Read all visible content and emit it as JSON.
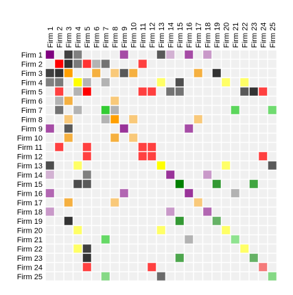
{
  "chart_data": {
    "type": "heatmap",
    "title": "",
    "xlabel": "",
    "ylabel": "",
    "x_axis_position": "top",
    "x_tick_rotation": -90,
    "grid": true,
    "legend": "none",
    "background_color": "#f0f0f0",
    "grid_color": "#ffffff",
    "labels": [
      "Firm 1",
      "Firm 2",
      "Firm 3",
      "Firm 4",
      "Firm 5",
      "Firm 6",
      "Firm 7",
      "Firm 8",
      "Firm 9",
      "Firm 10",
      "Firm 11",
      "Firm 12",
      "Firm 13",
      "Firm 14",
      "Firm 15",
      "Firm 16",
      "Firm 17",
      "Firm 18",
      "Firm 19",
      "Firm 20",
      "Firm 21",
      "Firm 22",
      "Firm 23",
      "Firm 24",
      "Firm 25"
    ],
    "cells": [
      {
        "row": "Firm 1",
        "col": "Firm 1",
        "color": "#800080"
      },
      {
        "row": "Firm 1",
        "col": "Firm 3",
        "color": "#404040"
      },
      {
        "row": "Firm 1",
        "col": "Firm 4",
        "color": "#808080"
      },
      {
        "row": "Firm 1",
        "col": "Firm 9",
        "color": "#a64ca6"
      },
      {
        "row": "Firm 1",
        "col": "Firm 13",
        "color": "#595959"
      },
      {
        "row": "Firm 1",
        "col": "Firm 14",
        "color": "#d3b2d3"
      },
      {
        "row": "Firm 1",
        "col": "Firm 16",
        "color": "#a64ca6"
      },
      {
        "row": "Firm 1",
        "col": "Firm 18",
        "color": "#c999c9"
      },
      {
        "row": "Firm 2",
        "col": "Firm 2",
        "color": "#ff0000"
      },
      {
        "row": "Firm 2",
        "col": "Firm 3",
        "color": "#333333"
      },
      {
        "row": "Firm 2",
        "col": "Firm 4",
        "color": "#7a7a7a"
      },
      {
        "row": "Firm 2",
        "col": "Firm 5",
        "color": "#ff3333"
      },
      {
        "row": "Firm 2",
        "col": "Firm 6",
        "color": "#b3b3b3"
      },
      {
        "row": "Firm 2",
        "col": "Firm 7",
        "color": "#737373"
      },
      {
        "row": "Firm 2",
        "col": "Firm 11",
        "color": "#ff4040"
      },
      {
        "row": "Firm 3",
        "col": "Firm 1",
        "color": "#404040"
      },
      {
        "row": "Firm 3",
        "col": "Firm 2",
        "color": "#333333"
      },
      {
        "row": "Firm 3",
        "col": "Firm 3",
        "color": "#ff9f00"
      },
      {
        "row": "Firm 3",
        "col": "Firm 6",
        "color": "#f5b040"
      },
      {
        "row": "Firm 3",
        "col": "Firm 8",
        "color": "#f9c97a"
      },
      {
        "row": "Firm 3",
        "col": "Firm 9",
        "color": "#595959"
      },
      {
        "row": "Firm 3",
        "col": "Firm 10",
        "color": "#f5b040"
      },
      {
        "row": "Firm 3",
        "col": "Firm 17",
        "color": "#f5b040"
      },
      {
        "row": "Firm 3",
        "col": "Firm 19",
        "color": "#333333"
      },
      {
        "row": "Firm 4",
        "col": "Firm 1",
        "color": "#808080"
      },
      {
        "row": "Firm 4",
        "col": "Firm 2",
        "color": "#7a7a7a"
      },
      {
        "row": "Firm 4",
        "col": "Firm 4",
        "color": "#ffff00"
      },
      {
        "row": "Firm 4",
        "col": "Firm 5",
        "color": "#b3b3b3"
      },
      {
        "row": "Firm 4",
        "col": "Firm 7",
        "color": "#b3b3b3"
      },
      {
        "row": "Firm 4",
        "col": "Firm 13",
        "color": "#ffff66"
      },
      {
        "row": "Firm 4",
        "col": "Firm 15",
        "color": "#4d4d4d"
      },
      {
        "row": "Firm 4",
        "col": "Firm 20",
        "color": "#ffff66"
      },
      {
        "row": "Firm 4",
        "col": "Firm 22",
        "color": "#ffff66"
      },
      {
        "row": "Firm 5",
        "col": "Firm 2",
        "color": "#ff4040"
      },
      {
        "row": "Firm 5",
        "col": "Firm 4",
        "color": "#b3b3b3"
      },
      {
        "row": "Firm 5",
        "col": "Firm 5",
        "color": "#ff0000"
      },
      {
        "row": "Firm 5",
        "col": "Firm 11",
        "color": "#ff4040"
      },
      {
        "row": "Firm 5",
        "col": "Firm 12",
        "color": "#ff4040"
      },
      {
        "row": "Firm 5",
        "col": "Firm 14",
        "color": "#737373"
      },
      {
        "row": "Firm 5",
        "col": "Firm 15",
        "color": "#737373"
      },
      {
        "row": "Firm 5",
        "col": "Firm 22",
        "color": "#595959"
      },
      {
        "row": "Firm 5",
        "col": "Firm 23",
        "color": "#333333"
      },
      {
        "row": "Firm 5",
        "col": "Firm 24",
        "color": "#ff4040"
      },
      {
        "row": "Firm 6",
        "col": "Firm 2",
        "color": "#b3b3b3"
      },
      {
        "row": "Firm 6",
        "col": "Firm 3",
        "color": "#f5b040"
      },
      {
        "row": "Firm 6",
        "col": "Firm 8",
        "color": "#f9c97a"
      },
      {
        "row": "Firm 7",
        "col": "Firm 2",
        "color": "#737373"
      },
      {
        "row": "Firm 7",
        "col": "Firm 4",
        "color": "#b3b3b3"
      },
      {
        "row": "Firm 7",
        "col": "Firm 7",
        "color": "#33cc33"
      },
      {
        "row": "Firm 7",
        "col": "Firm 8",
        "color": "#b3b3b3"
      },
      {
        "row": "Firm 7",
        "col": "Firm 21",
        "color": "#5cd65c"
      },
      {
        "row": "Firm 7",
        "col": "Firm 25",
        "color": "#70db70"
      },
      {
        "row": "Firm 8",
        "col": "Firm 3",
        "color": "#f9c97a"
      },
      {
        "row": "Firm 8",
        "col": "Firm 7",
        "color": "#b3b3b3"
      },
      {
        "row": "Firm 8",
        "col": "Firm 8",
        "color": "#ff9f00"
      },
      {
        "row": "Firm 8",
        "col": "Firm 10",
        "color": "#f9c97a"
      },
      {
        "row": "Firm 8",
        "col": "Firm 17",
        "color": "#f9c97a"
      },
      {
        "row": "Firm 9",
        "col": "Firm 1",
        "color": "#a64ca6"
      },
      {
        "row": "Firm 9",
        "col": "Firm 3",
        "color": "#595959"
      },
      {
        "row": "Firm 9",
        "col": "Firm 9",
        "color": "#993399"
      },
      {
        "row": "Firm 9",
        "col": "Firm 16",
        "color": "#a64ca6"
      },
      {
        "row": "Firm 10",
        "col": "Firm 3",
        "color": "#f5b040"
      },
      {
        "row": "Firm 10",
        "col": "Firm 8",
        "color": "#f5b040"
      },
      {
        "row": "Firm 10",
        "col": "Firm 10",
        "color": "#f9c97a"
      },
      {
        "row": "Firm 11",
        "col": "Firm 2",
        "color": "#ff4040"
      },
      {
        "row": "Firm 11",
        "col": "Firm 5",
        "color": "#ff4040"
      },
      {
        "row": "Firm 11",
        "col": "Firm 11",
        "color": "#ff4040"
      },
      {
        "row": "Firm 11",
        "col": "Firm 12",
        "color": "#ff4040"
      },
      {
        "row": "Firm 12",
        "col": "Firm 5",
        "color": "#ff4040"
      },
      {
        "row": "Firm 12",
        "col": "Firm 11",
        "color": "#ff4040"
      },
      {
        "row": "Firm 12",
        "col": "Firm 12",
        "color": "#ff4040"
      },
      {
        "row": "Firm 12",
        "col": "Firm 24",
        "color": "#ff4040"
      },
      {
        "row": "Firm 13",
        "col": "Firm 1",
        "color": "#4d4d4d"
      },
      {
        "row": "Firm 13",
        "col": "Firm 4",
        "color": "#ffff66"
      },
      {
        "row": "Firm 13",
        "col": "Firm 13",
        "color": "#ffff00"
      },
      {
        "row": "Firm 13",
        "col": "Firm 20",
        "color": "#ffff66"
      },
      {
        "row": "Firm 13",
        "col": "Firm 25",
        "color": "#595959"
      },
      {
        "row": "Firm 14",
        "col": "Firm 1",
        "color": "#d3b2d3"
      },
      {
        "row": "Firm 14",
        "col": "Firm 5",
        "color": "#808080"
      },
      {
        "row": "Firm 14",
        "col": "Firm 14",
        "color": "#993399"
      },
      {
        "row": "Firm 14",
        "col": "Firm 18",
        "color": "#c999c9"
      },
      {
        "row": "Firm 15",
        "col": "Firm 4",
        "color": "#4d4d4d"
      },
      {
        "row": "Firm 15",
        "col": "Firm 5",
        "color": "#595959"
      },
      {
        "row": "Firm 15",
        "col": "Firm 15",
        "color": "#008000"
      },
      {
        "row": "Firm 15",
        "col": "Firm 19",
        "color": "#339933"
      },
      {
        "row": "Firm 15",
        "col": "Firm 23",
        "color": "#40a640"
      },
      {
        "row": "Firm 16",
        "col": "Firm 1",
        "color": "#b266b2"
      },
      {
        "row": "Firm 16",
        "col": "Firm 9",
        "color": "#b266b2"
      },
      {
        "row": "Firm 16",
        "col": "Firm 16",
        "color": "#993399"
      },
      {
        "row": "Firm 16",
        "col": "Firm 21",
        "color": "#b3b3b3"
      },
      {
        "row": "Firm 17",
        "col": "Firm 3",
        "color": "#f5b040"
      },
      {
        "row": "Firm 17",
        "col": "Firm 8",
        "color": "#f9c97a"
      },
      {
        "row": "Firm 17",
        "col": "Firm 17",
        "color": "#f9c97a"
      },
      {
        "row": "Firm 18",
        "col": "Firm 1",
        "color": "#c999c9"
      },
      {
        "row": "Firm 18",
        "col": "Firm 14",
        "color": "#c999c9"
      },
      {
        "row": "Firm 18",
        "col": "Firm 18",
        "color": "#b266b2"
      },
      {
        "row": "Firm 19",
        "col": "Firm 3",
        "color": "#333333"
      },
      {
        "row": "Firm 19",
        "col": "Firm 15",
        "color": "#339933"
      },
      {
        "row": "Firm 19",
        "col": "Firm 19",
        "color": "#66b266"
      },
      {
        "row": "Firm 20",
        "col": "Firm 4",
        "color": "#ffff66"
      },
      {
        "row": "Firm 20",
        "col": "Firm 13",
        "color": "#ffff66"
      },
      {
        "row": "Firm 20",
        "col": "Firm 20",
        "color": "#ffff66"
      },
      {
        "row": "Firm 21",
        "col": "Firm 7",
        "color": "#66d966"
      },
      {
        "row": "Firm 21",
        "col": "Firm 16",
        "color": "#b3b3b3"
      },
      {
        "row": "Firm 21",
        "col": "Firm 21",
        "color": "#8fe38f"
      },
      {
        "row": "Firm 22",
        "col": "Firm 4",
        "color": "#ffff66"
      },
      {
        "row": "Firm 22",
        "col": "Firm 5",
        "color": "#404040"
      },
      {
        "row": "Firm 22",
        "col": "Firm 22",
        "color": "#ffff66"
      },
      {
        "row": "Firm 23",
        "col": "Firm 5",
        "color": "#333333"
      },
      {
        "row": "Firm 23",
        "col": "Firm 15",
        "color": "#4da64d"
      },
      {
        "row": "Firm 23",
        "col": "Firm 23",
        "color": "#66b266"
      },
      {
        "row": "Firm 24",
        "col": "Firm 5",
        "color": "#ff4040"
      },
      {
        "row": "Firm 24",
        "col": "Firm 12",
        "color": "#ff4040"
      },
      {
        "row": "Firm 24",
        "col": "Firm 24",
        "color": "#f57a7a"
      },
      {
        "row": "Firm 25",
        "col": "Firm 7",
        "color": "#85d985"
      },
      {
        "row": "Firm 25",
        "col": "Firm 13",
        "color": "#6b6b6b"
      },
      {
        "row": "Firm 25",
        "col": "Firm 25",
        "color": "#85d985"
      }
    ]
  }
}
